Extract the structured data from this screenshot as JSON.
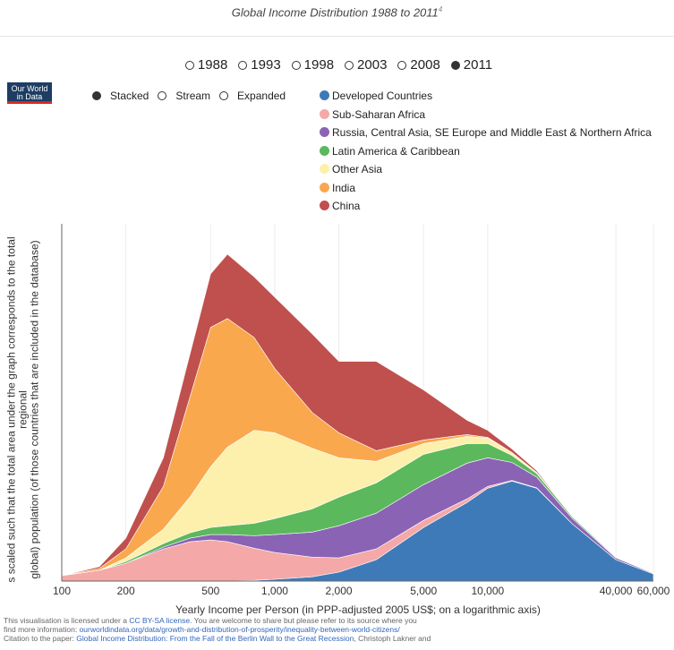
{
  "caption": {
    "title": "Global Income Distribution 1988 to 2011",
    "footnote": "4"
  },
  "logo": {
    "line1": "Our World",
    "line2": "in Data"
  },
  "years": [
    {
      "label": "1988",
      "selected": false
    },
    {
      "label": "1993",
      "selected": false
    },
    {
      "label": "1998",
      "selected": false
    },
    {
      "label": "2003",
      "selected": false
    },
    {
      "label": "2008",
      "selected": false
    },
    {
      "label": "2011",
      "selected": true
    }
  ],
  "modes": [
    {
      "label": "Stacked",
      "selected": true
    },
    {
      "label": "Stream",
      "selected": false
    },
    {
      "label": "Expanded",
      "selected": false
    }
  ],
  "chart_data": {
    "type": "area",
    "stacked": true,
    "log_x": true,
    "xlim": [
      100,
      60000
    ],
    "x_ticks": [
      100,
      200,
      500,
      1000,
      2000,
      5000,
      10000,
      40000,
      60000
    ],
    "x_tick_labels": [
      "100",
      "200",
      "500",
      "1,000",
      "2,000",
      "5,000",
      "10,000",
      "40,000",
      "60,000"
    ],
    "xlabel": "Yearly Income per Person (in PPP-adjusted 2005 US$; on a logarithmic axis)",
    "ylabel": "s scaled such that the total area under the graph corresponds to the total regional global) population (of those countries that are included in the database)",
    "ylabel_line1": "s scaled such that the total area under the graph corresponds to the total regional",
    "ylabel_line2": "global) population (of those countries that are included in the database)",
    "ylim": [
      0,
      100
    ],
    "legend_position": "top",
    "x": [
      100,
      150,
      200,
      300,
      400,
      500,
      600,
      800,
      1000,
      1500,
      2000,
      3000,
      5000,
      8000,
      10000,
      13000,
      17000,
      25000,
      40000,
      60000
    ],
    "series": [
      {
        "name": "Developed Countries",
        "color": "#3f7ab8",
        "values": [
          0,
          0,
          0,
          0,
          0,
          0,
          0,
          0.2,
          0.5,
          1.2,
          2.5,
          6,
          15,
          22,
          26,
          28,
          26,
          16,
          6,
          2
        ]
      },
      {
        "name": "Sub-Saharan Africa",
        "color": "#f4a8a8",
        "values": [
          1.5,
          3,
          5,
          9,
          11,
          11.5,
          11,
          9,
          7.5,
          5.5,
          4,
          3,
          2,
          1,
          0.5,
          0.2,
          0.1,
          0,
          0,
          0
        ]
      },
      {
        "name": "Russia, Central Asia, SE Europe and Middle East & Northern Africa",
        "color": "#8a63b5",
        "values": [
          0,
          0,
          0,
          0.5,
          1,
          1.5,
          2,
          3.5,
          5,
          7,
          9,
          10,
          10,
          10,
          8,
          5,
          3,
          1.5,
          0.5,
          0.2
        ]
      },
      {
        "name": "Latin America & Caribbean",
        "color": "#5cb85c",
        "values": [
          0,
          0,
          0.5,
          1,
          1.5,
          2,
          2.5,
          3.5,
          4.5,
          6.5,
          8,
          8.5,
          8.5,
          5.5,
          4,
          2,
          1,
          0.5,
          0.2,
          0
        ]
      },
      {
        "name": "Other Asia",
        "color": "#fdf0ad",
        "values": [
          0,
          0,
          1,
          4,
          10,
          17,
          22,
          26,
          24,
          17,
          11,
          6,
          3,
          2,
          1.5,
          0.8,
          0.3,
          0,
          0,
          0
        ]
      },
      {
        "name": "India",
        "color": "#f9a84e",
        "values": [
          0,
          0.5,
          2.5,
          12,
          28,
          39,
          36,
          26,
          18,
          10,
          7,
          3,
          1,
          0.5,
          0.2,
          0,
          0,
          0,
          0,
          0
        ]
      },
      {
        "name": "China",
        "color": "#c0504d",
        "values": [
          0,
          0.5,
          3,
          8,
          12,
          15,
          18,
          17,
          20,
          22,
          20,
          25,
          14,
          4,
          2,
          1,
          0.5,
          0,
          0,
          0
        ]
      }
    ]
  },
  "footer": {
    "line1_pre": "This visualisation is licensed under a ",
    "line1_link": "CC BY-SA license",
    "line1_post": ". You are welcome to share but please refer to its source where you",
    "line2_pre": "find more information:  ",
    "line2_link": "ourworldindata.org/data/growth-and-distribution-of-prosperity/inequality-between-world-citizens/",
    "line3_pre": "Citation to the paper: ",
    "line3_link": "Global Income Distribution: From the Fall of the Berlin Wall to the Great Recession",
    "line3_post": ", Christoph Lakner and"
  }
}
